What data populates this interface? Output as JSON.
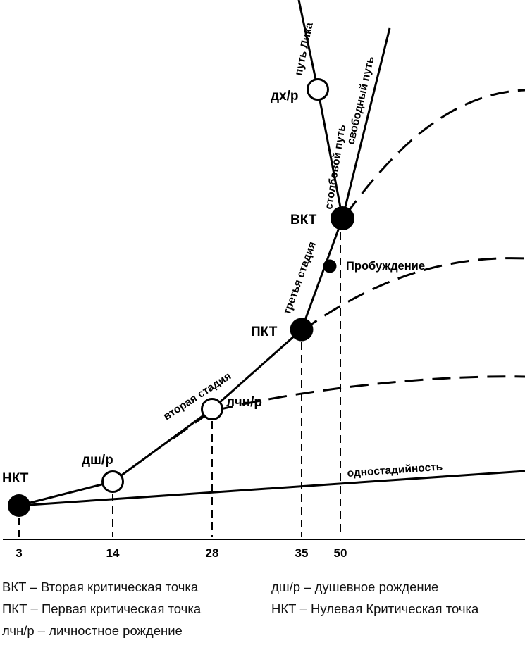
{
  "nodes": {
    "nkt": "НКТ",
    "dshr": "дш/р",
    "lchnr": "лчн/р",
    "pkt": "ПКТ",
    "vkt": "ВКТ",
    "dkhr": "дх/р",
    "awakening": "Пробуждение"
  },
  "paths": {
    "second_stage": "вторая стадия",
    "third_stage": "третья стадия",
    "single_stage": "одностадийность",
    "pillar_path": "столбовой путь",
    "free_path": "свободный путь",
    "lik_path": "путь Лика"
  },
  "axis": {
    "ticks": [
      "3",
      "14",
      "28",
      "35",
      "50"
    ]
  },
  "legend": [
    "ВКТ – Вторая критическая точка",
    "дш/р – душевное рождение",
    "ПКТ – Первая критическая точка",
    "НКТ – Нулевая Критическая точка",
    "лчн/р – личностное рождение"
  ],
  "colors": {
    "ink": "#000000",
    "background": "#ffffff"
  }
}
